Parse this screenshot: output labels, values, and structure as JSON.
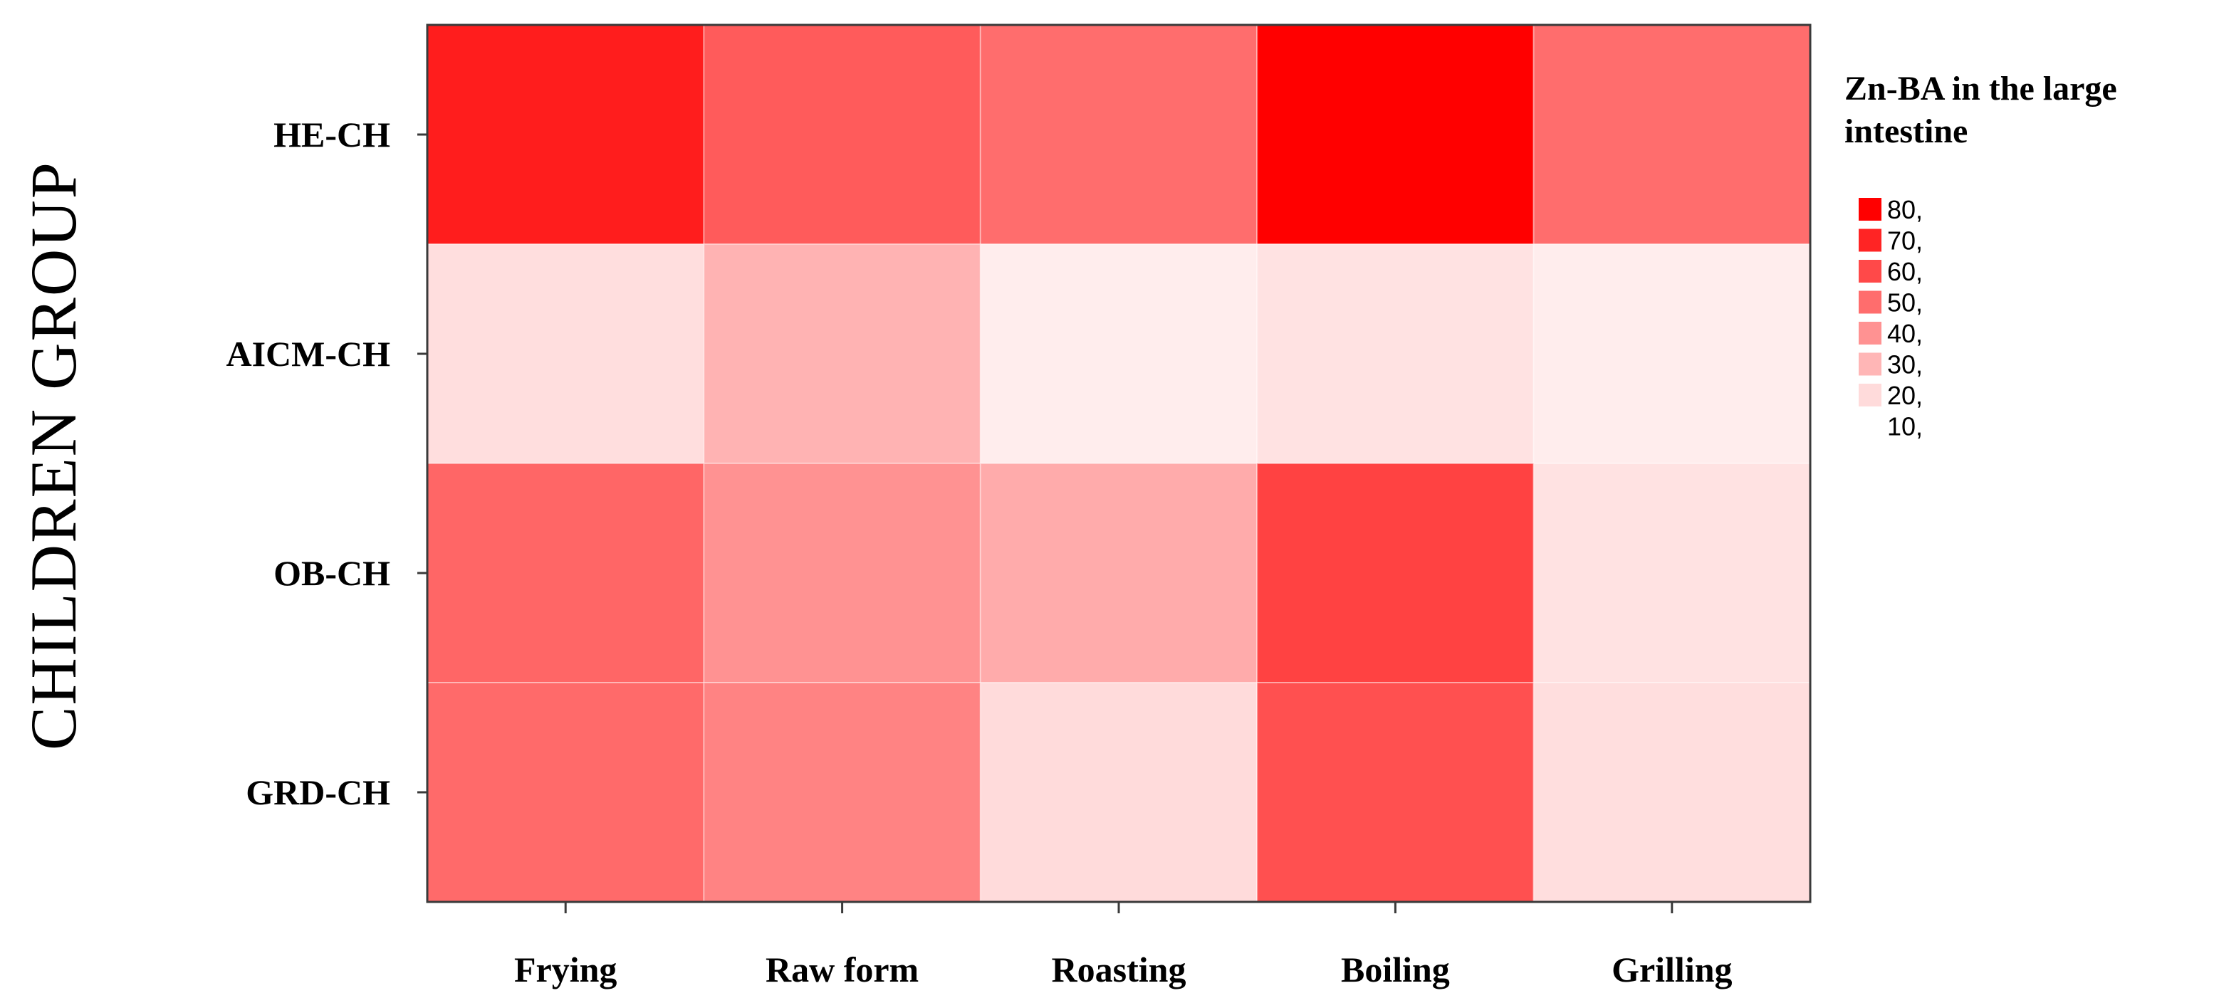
{
  "chart_data": {
    "type": "heatmap",
    "title": "",
    "xlabel": "",
    "ylabel": "CHILDREN GROUP",
    "x_categories": [
      "Frying",
      "Raw form",
      "Roasting",
      "Boiling",
      "Grilling"
    ],
    "y_categories": [
      "HE-CH",
      "AICM-CH",
      "OB-CH",
      "GRD-CH"
    ],
    "values": [
      [
        72,
        55,
        50,
        80,
        50
      ],
      [
        19,
        31,
        15,
        18,
        15
      ],
      [
        52,
        40,
        33,
        62,
        18
      ],
      [
        51,
        44,
        20,
        58,
        19
      ]
    ],
    "color_scale": {
      "min_color": "#ffffff",
      "max_color": "#ff0000",
      "min": 10,
      "max": 80
    },
    "legend": {
      "title_lines": [
        "Zn-BA in the large",
        "intestine"
      ],
      "entries": [
        "80,",
        "70,",
        "60,",
        "50,",
        "40,",
        "30,",
        "20,",
        "10,"
      ],
      "entry_values": [
        80,
        70,
        60,
        50,
        40,
        30,
        20,
        10
      ],
      "placement": "right"
    },
    "grid": false
  }
}
